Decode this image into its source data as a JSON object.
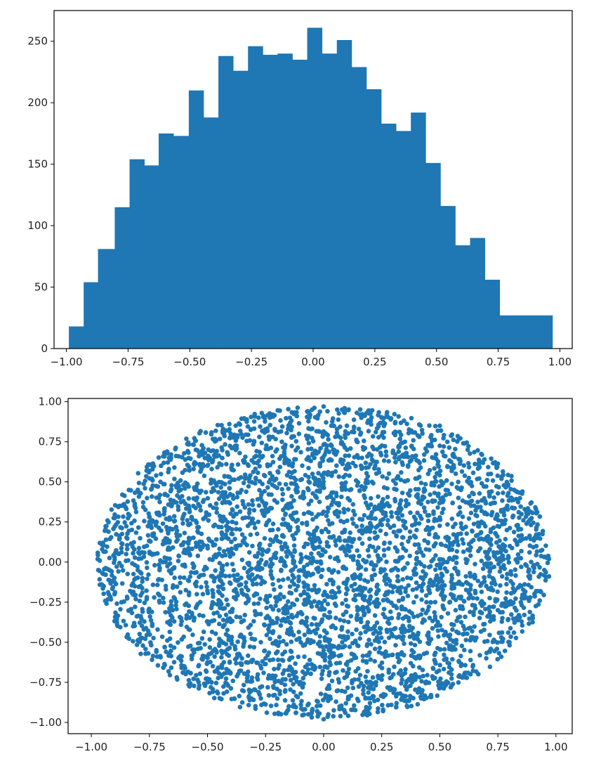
{
  "colors": {
    "series": "#1f77b4",
    "axis": "#000000",
    "background": "#ffffff"
  },
  "chart_data": [
    {
      "type": "bar",
      "title": "",
      "xlabel": "",
      "ylabel": "",
      "xlim": [
        -1.05,
        1.05
      ],
      "ylim": [
        0,
        275
      ],
      "grid": false,
      "x_ticks": [
        -1.0,
        -0.75,
        -0.5,
        -0.25,
        0.0,
        0.25,
        0.5,
        0.75,
        1.0
      ],
      "x_tick_labels": [
        "−1.00",
        "−0.75",
        "−0.50",
        "−0.25",
        "0.00",
        "0.25",
        "0.50",
        "0.75",
        "1.00"
      ],
      "y_ticks": [
        0,
        50,
        100,
        150,
        200,
        250
      ],
      "y_tick_labels": [
        "0",
        "50",
        "100",
        "150",
        "200",
        "250"
      ],
      "bin_edges": [
        -0.99,
        -0.93,
        -0.872,
        -0.804,
        -0.744,
        -0.684,
        -0.626,
        -0.566,
        -0.504,
        -0.444,
        -0.384,
        -0.324,
        -0.264,
        -0.204,
        -0.144,
        -0.084,
        -0.024,
        0.036,
        0.096,
        0.156,
        0.216,
        0.276,
        0.336,
        0.396,
        0.456,
        0.516,
        0.576,
        0.636,
        0.696,
        0.756,
        0.816,
        0.876,
        0.936,
        0.97
      ],
      "values": [
        18,
        54,
        81,
        115,
        154,
        149,
        175,
        173,
        210,
        188,
        238,
        226,
        246,
        239,
        240,
        235,
        261,
        240,
        251,
        229,
        211,
        183,
        177,
        192,
        151,
        116,
        84,
        90,
        56,
        27,
        27,
        27,
        27
      ]
    },
    {
      "type": "scatter",
      "title": "",
      "xlabel": "",
      "ylabel": "",
      "xlim": [
        -1.1,
        1.07
      ],
      "ylim": [
        -1.07,
        1.02
      ],
      "grid": false,
      "x_ticks": [
        -1.0,
        -0.75,
        -0.5,
        -0.25,
        0.0,
        0.25,
        0.5,
        0.75,
        1.0
      ],
      "x_tick_labels": [
        "−1.00",
        "−0.75",
        "−0.50",
        "−0.25",
        "0.00",
        "0.25",
        "0.50",
        "0.75",
        "1.00"
      ],
      "y_ticks": [
        -1.0,
        -0.75,
        -0.5,
        -0.25,
        0.0,
        0.25,
        0.5,
        0.75,
        1.0
      ],
      "y_tick_labels": [
        "−1.00",
        "−0.75",
        "−0.50",
        "−0.25",
        "0.00",
        "0.25",
        "0.50",
        "0.75",
        "1.00"
      ],
      "points": [
        [
          -0.95,
          0.12
        ],
        [
          -0.9,
          -0.2
        ],
        [
          -0.88,
          0.35
        ],
        [
          -0.85,
          0.05
        ],
        [
          -0.82,
          -0.4
        ],
        [
          -0.8,
          0.45
        ],
        [
          -0.78,
          -0.1
        ],
        [
          -0.75,
          0.25
        ],
        [
          -0.72,
          -0.55
        ],
        [
          -0.7,
          0.6
        ],
        [
          -0.68,
          0.0
        ],
        [
          -0.65,
          -0.3
        ],
        [
          -0.62,
          0.4
        ],
        [
          -0.6,
          -0.65
        ],
        [
          -0.58,
          0.15
        ],
        [
          -0.55,
          0.7
        ],
        [
          -0.52,
          -0.2
        ],
        [
          -0.5,
          -0.75
        ],
        [
          -0.48,
          0.5
        ],
        [
          -0.45,
          0.05
        ],
        [
          -0.42,
          -0.45
        ],
        [
          -0.4,
          0.8
        ],
        [
          -0.38,
          0.3
        ],
        [
          -0.35,
          -0.8
        ],
        [
          -0.32,
          -0.1
        ],
        [
          -0.3,
          0.62
        ],
        [
          -0.28,
          0.9
        ],
        [
          -0.25,
          -0.6
        ],
        [
          -0.22,
          0.2
        ],
        [
          -0.2,
          -0.35
        ],
        [
          -0.18,
          0.75
        ],
        [
          -0.15,
          -0.9
        ],
        [
          -0.12,
          0.45
        ],
        [
          -0.1,
          0.0
        ],
        [
          -0.08,
          -0.7
        ],
        [
          -0.05,
          0.95
        ],
        [
          -0.02,
          -0.25
        ],
        [
          0.0,
          0.55
        ],
        [
          0.02,
          -0.95
        ],
        [
          0.05,
          0.3
        ],
        [
          0.08,
          -0.5
        ],
        [
          0.1,
          0.85
        ],
        [
          0.12,
          -0.15
        ],
        [
          0.15,
          0.65
        ],
        [
          0.18,
          -0.85
        ],
        [
          0.2,
          0.1
        ],
        [
          0.22,
          -0.4
        ],
        [
          0.25,
          0.9
        ],
        [
          0.28,
          0.35
        ],
        [
          0.3,
          -0.7
        ],
        [
          0.32,
          -0.05
        ],
        [
          0.35,
          0.75
        ],
        [
          0.38,
          -0.55
        ],
        [
          0.4,
          0.2
        ],
        [
          0.42,
          -0.85
        ],
        [
          0.45,
          0.55
        ],
        [
          0.48,
          -0.25
        ],
        [
          0.5,
          0.85
        ],
        [
          0.52,
          0.0
        ],
        [
          0.55,
          -0.7
        ],
        [
          0.58,
          0.4
        ],
        [
          0.6,
          -0.45
        ],
        [
          0.62,
          0.7
        ],
        [
          0.65,
          -0.1
        ],
        [
          0.68,
          0.25
        ],
        [
          0.7,
          -0.6
        ],
        [
          0.72,
          0.55
        ],
        [
          0.75,
          -0.3
        ],
        [
          0.78,
          0.1
        ],
        [
          0.8,
          -0.5
        ],
        [
          0.82,
          0.45
        ],
        [
          0.85,
          -0.15
        ],
        [
          0.88,
          0.3
        ],
        [
          0.9,
          -0.35
        ],
        [
          0.92,
          0.15
        ],
        [
          0.95,
          -0.05
        ],
        [
          0.97,
          0.02
        ],
        [
          -0.97,
          -0.05
        ],
        [
          0.0,
          -0.98
        ],
        [
          0.0,
          0.97
        ]
      ]
    }
  ]
}
